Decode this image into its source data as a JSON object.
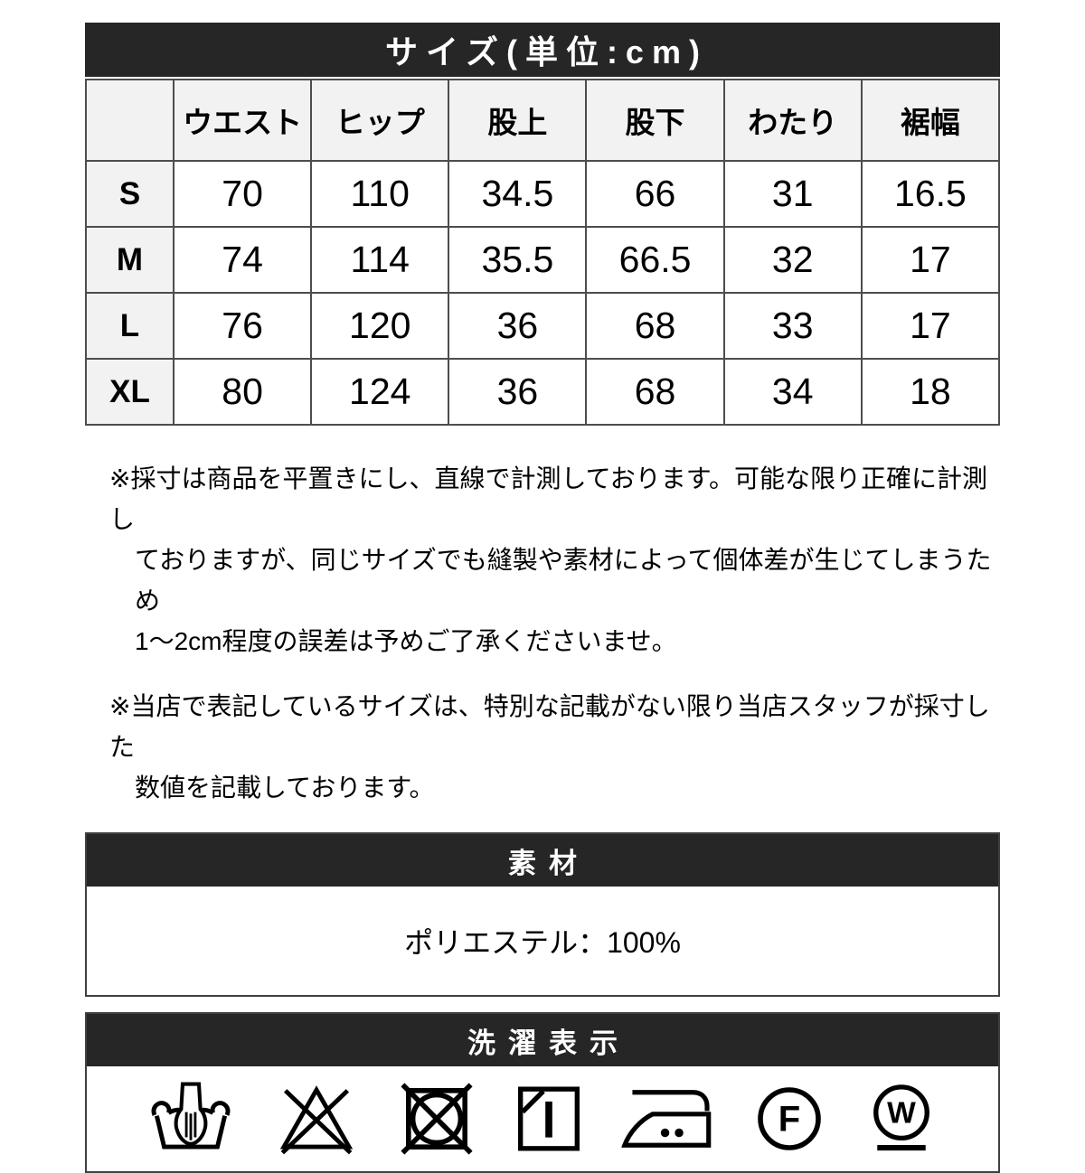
{
  "colors": {
    "bar_background": "#262626",
    "bar_text": "#ffffff",
    "header_cell_background": "#f2f2f2",
    "grid_border": "#4d4d4d",
    "icon_color": "#000000"
  },
  "size_section": {
    "title": "サイズ(単位:cm)",
    "columns": [
      "ウエスト",
      "ヒップ",
      "股上",
      "股下",
      "わたり",
      "裾幅"
    ],
    "rows": [
      {
        "label": "S",
        "values": [
          "70",
          "110",
          "34.5",
          "66",
          "31",
          "16.5"
        ]
      },
      {
        "label": "M",
        "values": [
          "74",
          "114",
          "35.5",
          "66.5",
          "32",
          "17"
        ]
      },
      {
        "label": "L",
        "values": [
          "76",
          "120",
          "36",
          "68",
          "33",
          "17"
        ]
      },
      {
        "label": "XL",
        "values": [
          "80",
          "124",
          "36",
          "68",
          "34",
          "18"
        ]
      }
    ]
  },
  "notes": [
    {
      "lines": [
        "※採寸は商品を平置きにし、直線で計測しております。可能な限り正確に計測し",
        "ておりますが、同じサイズでも縫製や素材によって個体差が生じてしまうため",
        "1〜2cm程度の誤差は予めご了承くださいませ。"
      ]
    },
    {
      "lines": [
        "※当店で表記しているサイズは、特別な記載がない限り当店スタッフが採寸した",
        "数値を記載しております。"
      ]
    }
  ],
  "material_section": {
    "title": "素材",
    "content": "ポリエステル：100%"
  },
  "care_section": {
    "title": "洗濯表示",
    "icons": [
      {
        "name": "hand-wash-icon",
        "symbol": "hand-wash"
      },
      {
        "name": "do-not-bleach-icon",
        "symbol": "no-bleach"
      },
      {
        "name": "do-not-tumble-dry-icon",
        "symbol": "no-tumble"
      },
      {
        "name": "line-dry-in-shade-icon",
        "symbol": "shade-dry"
      },
      {
        "name": "iron-two-dots-icon",
        "symbol": "iron"
      },
      {
        "name": "dry-clean-f-icon",
        "symbol": "circle-f"
      },
      {
        "name": "wet-clean-w-icon",
        "symbol": "circle-w"
      }
    ]
  }
}
